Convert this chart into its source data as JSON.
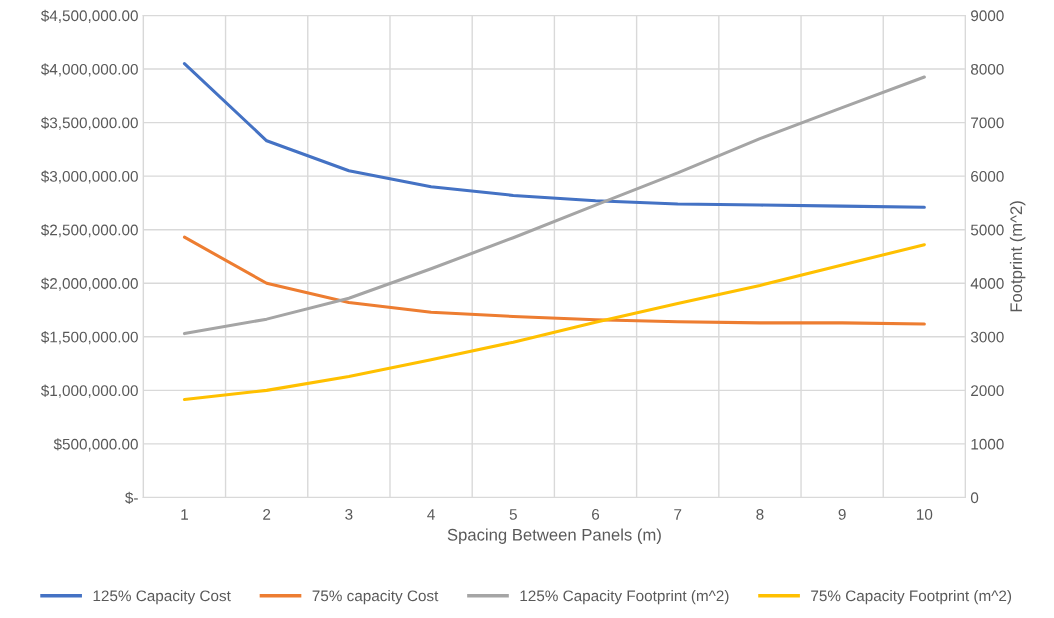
{
  "chart_data": {
    "type": "line",
    "xlabel": "Spacing Between Panels (m)",
    "y2label": "Footprint (m^2)",
    "categories": [
      "1",
      "2",
      "3",
      "4",
      "5",
      "6",
      "7",
      "8",
      "9",
      "10"
    ],
    "series": [
      {
        "name": "125% Capacity Cost",
        "color": "#4472c4",
        "values": [
          4050000,
          3330000,
          3050000,
          2900000,
          2820000,
          2770000,
          2740000,
          2730000,
          2720000,
          2710000
        ]
      },
      {
        "name": "75% capacity Cost",
        "color": "#ed7d31",
        "values": [
          2430000,
          2000000,
          1820000,
          1730000,
          1690000,
          1660000,
          1640000,
          1630000,
          1630000,
          1620000
        ]
      },
      {
        "name": "125% Capacity Footprint (m^2)",
        "color": "#a5a5a5",
        "axis": "y2",
        "values": [
          3060,
          3330,
          3720,
          4270,
          4850,
          5460,
          6060,
          6700,
          7280,
          7850
        ]
      },
      {
        "name": "75% Capacity Footprint (m^2)",
        "color": "#ffc000",
        "axis": "y2",
        "values": [
          1830,
          2000,
          2260,
          2570,
          2900,
          3270,
          3620,
          3960,
          4340,
          4720
        ]
      }
    ],
    "ylim": [
      0,
      4500000
    ],
    "yticks": [
      {
        "value": 0,
        "label": "$-"
      },
      {
        "value": 500000,
        "label": "$500,000.00"
      },
      {
        "value": 1000000,
        "label": "$1,000,000.00"
      },
      {
        "value": 1500000,
        "label": "$1,500,000.00"
      },
      {
        "value": 2000000,
        "label": "$2,000,000.00"
      },
      {
        "value": 2500000,
        "label": "$2,500,000.00"
      },
      {
        "value": 3000000,
        "label": "$3,000,000.00"
      },
      {
        "value": 3500000,
        "label": "$3,500,000.00"
      },
      {
        "value": 4000000,
        "label": "$4,000,000.00"
      },
      {
        "value": 4500000,
        "label": "$4,500,000.00"
      }
    ],
    "y2lim": [
      0,
      9000
    ],
    "y2ticks": [
      0,
      1000,
      2000,
      3000,
      4000,
      5000,
      6000,
      7000,
      8000,
      9000
    ],
    "grid": true,
    "legend": "bottom",
    "marker": "none",
    "line_style": "solid"
  }
}
